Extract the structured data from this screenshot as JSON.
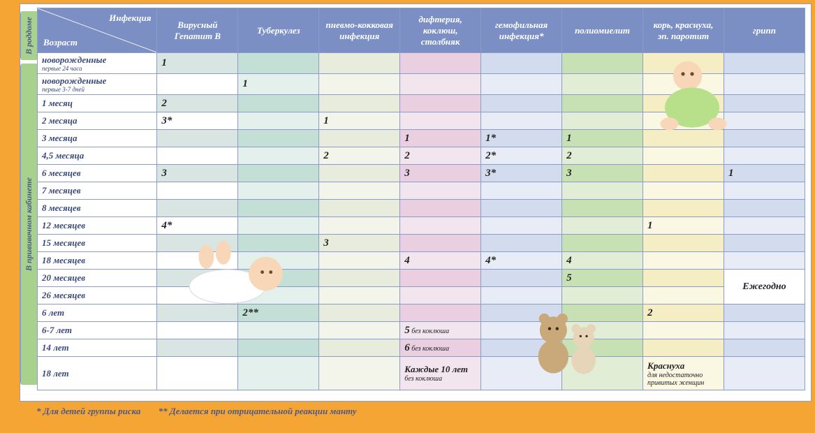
{
  "header": {
    "diag_top": "Инфекция",
    "diag_bottom": "Возраст",
    "cols": [
      "Вирусный Гепатит В",
      "Туберкулез",
      "пневмо-кокковая инфекция",
      "дифтерия, коклюш, столбняк",
      "гемофильная инфекция*",
      "полиомиелит",
      "корь, краснуха, эп. паротит",
      "грипп"
    ]
  },
  "side_tabs": {
    "top": "В роддоме",
    "bottom": "В прививочном кабинете"
  },
  "col_widths": {
    "age": 170,
    "data": 115
  },
  "footnotes": [
    "* Для детей группы риска",
    "** Делается при отрицательной реакции манту"
  ],
  "rows": [
    {
      "age": "новорожденные",
      "sub": "первые 24 часа",
      "cells": [
        "1",
        "",
        "",
        "",
        "",
        "",
        "",
        ""
      ]
    },
    {
      "age": "новорожденные",
      "sub": "первые 3-7 дней",
      "cells": [
        "",
        "1",
        "",
        "",
        "",
        "",
        "",
        ""
      ]
    },
    {
      "age": "1 месяц",
      "cells": [
        "2",
        "",
        "",
        "",
        "",
        "",
        "",
        ""
      ]
    },
    {
      "age": "2 месяца",
      "cells": [
        "3*",
        "",
        "1",
        "",
        "",
        "",
        "",
        ""
      ]
    },
    {
      "age": "3 месяца",
      "cells": [
        "",
        "",
        "",
        "1",
        "1*",
        "1",
        "",
        ""
      ]
    },
    {
      "age": "4,5 месяца",
      "cells": [
        "",
        "",
        "2",
        "2",
        "2*",
        "2",
        "",
        ""
      ]
    },
    {
      "age": "6 месяцев",
      "cells": [
        "3",
        "",
        "",
        "3",
        "3*",
        "3",
        "",
        "1"
      ]
    },
    {
      "age": "7 месяцев",
      "cells": [
        "",
        "",
        "",
        "",
        "",
        "",
        "",
        ""
      ]
    },
    {
      "age": "8 месяцев",
      "cells": [
        "",
        "",
        "",
        "",
        "",
        "",
        "",
        ""
      ]
    },
    {
      "age": "12 месяцев",
      "cells": [
        "4*",
        "",
        "",
        "",
        "",
        "",
        "1",
        ""
      ]
    },
    {
      "age": "15 месяцев",
      "cells": [
        "",
        "",
        "3",
        "",
        "",
        "",
        "",
        ""
      ]
    },
    {
      "age": "18 месяцев",
      "cells": [
        "",
        "",
        "",
        "4",
        "4*",
        "4",
        "",
        ""
      ]
    },
    {
      "age": "20 месяцев",
      "cells": [
        "",
        "",
        "",
        "",
        "",
        "5",
        "",
        ""
      ],
      "flu_span_start": true,
      "flu_text": "Ежегодно"
    },
    {
      "age": "26 месяцев",
      "cells": [
        "",
        "",
        "",
        "",
        "",
        "",
        "",
        ""
      ]
    },
    {
      "age": "6 лет",
      "cells": [
        "",
        "2**",
        "",
        "",
        "",
        "",
        "2",
        ""
      ]
    },
    {
      "age": "6-7 лет",
      "cells": [
        "",
        "",
        "",
        "5",
        "",
        "",
        "",
        ""
      ],
      "dtp_sub": "без коклюша"
    },
    {
      "age": "14 лет",
      "cells": [
        "",
        "",
        "",
        "6",
        "",
        "",
        "",
        ""
      ],
      "dtp_sub": "без коклюша"
    },
    {
      "age": "18 лет",
      "tall": true,
      "cells": [
        "",
        "",
        "",
        "Каждые 10 лет",
        "",
        "",
        "Краснуха",
        ""
      ],
      "dtp_sub": "без коклюша",
      "mmr_sub": "для недостаточно привитых женщин"
    }
  ],
  "colors": {
    "frame": "#f5a534",
    "header_bg": "#7b8fc4",
    "border": "#8a9cc7",
    "side_tab": "#a9d18e"
  }
}
